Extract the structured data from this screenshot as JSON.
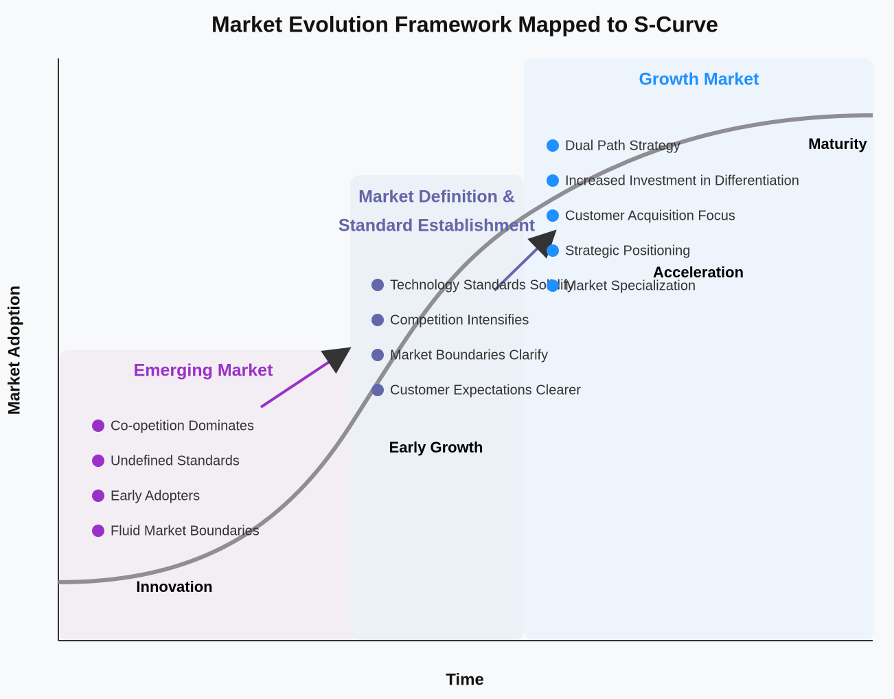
{
  "title": "Market Evolution Framework Mapped to S-Curve",
  "axes": {
    "x_label": "Time",
    "y_label": "Market Adoption"
  },
  "phases": [
    {
      "title_lines": [
        "Emerging Market"
      ],
      "items": [
        "Co-opetition Dominates",
        "Undefined Standards",
        "Early Adopters",
        "Fluid Market Boundaries"
      ]
    },
    {
      "title_lines": [
        "Market Definition &",
        "Standard Establishment"
      ],
      "items": [
        "Technology Standards Solidify",
        "Competition Intensifies",
        "Market Boundaries Clarify",
        "Customer Expectations Clearer"
      ]
    },
    {
      "title_lines": [
        "Growth Market"
      ],
      "items": [
        "Dual Path Strategy",
        "Increased Investment in Differentiation",
        "Customer Acquisition Focus",
        "Strategic Positioning",
        "Market Specialization"
      ]
    }
  ],
  "stages": [
    "Innovation",
    "Early Growth",
    "Acceleration",
    "Maturity"
  ]
}
